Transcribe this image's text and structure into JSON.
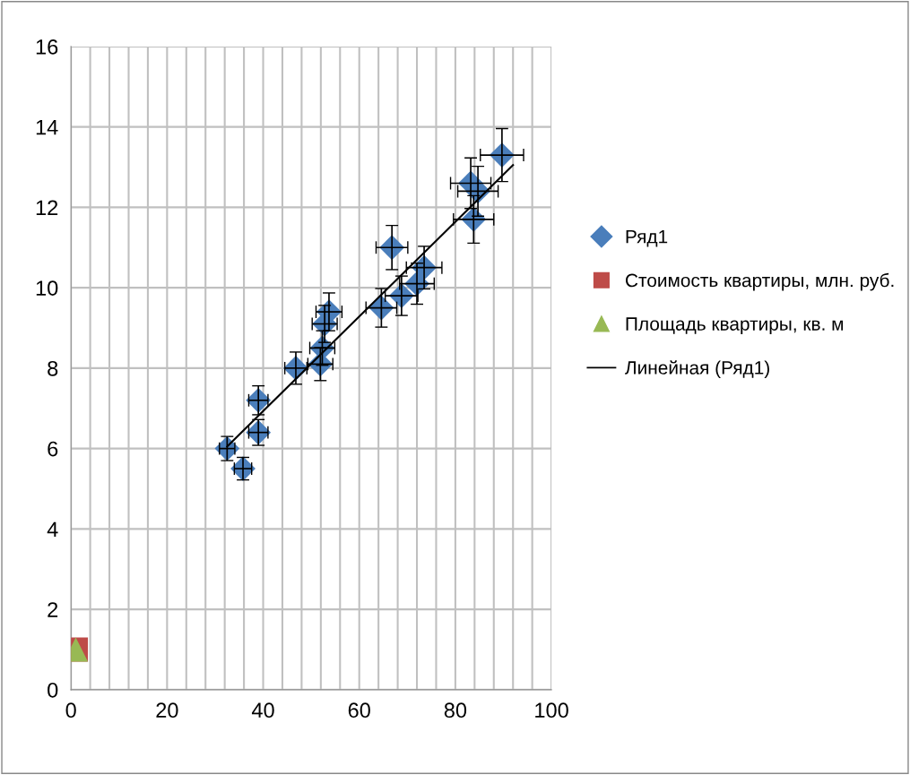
{
  "chart_data": {
    "type": "scatter",
    "xlim": [
      0,
      100
    ],
    "ylim": [
      0,
      16
    ],
    "xticks": [
      0,
      {
        "value": 4,
        "label": null
      },
      {
        "value": 8,
        "label": null
      },
      {
        "value": 12,
        "label": null
      },
      {
        "value": 16,
        "label": null
      },
      20,
      {
        "value": 24,
        "label": null
      },
      {
        "value": 28,
        "label": null
      },
      {
        "value": 32,
        "label": null
      },
      {
        "value": 36,
        "label": null
      },
      40,
      {
        "value": 44,
        "label": null
      },
      {
        "value": 48,
        "label": null
      },
      {
        "value": 52,
        "label": null
      },
      {
        "value": 56,
        "label": null
      },
      60,
      {
        "value": 64,
        "label": null
      },
      {
        "value": 68,
        "label": null
      },
      {
        "value": 72,
        "label": null
      },
      {
        "value": 76,
        "label": null
      },
      80,
      {
        "value": 84,
        "label": null
      },
      {
        "value": 88,
        "label": null
      },
      {
        "value": 92,
        "label": null
      },
      {
        "value": 96,
        "label": null
      },
      100
    ],
    "yticks": [
      0,
      2,
      4,
      6,
      8,
      10,
      12,
      14,
      16
    ],
    "grid": true,
    "legend": "right",
    "series": [
      {
        "name": "Ряд1",
        "color": "#4a7ebb",
        "marker": "diamond",
        "x": [
          32.5,
          35.8,
          39,
          39,
          46.8,
          51.9,
          52.3,
          52.8,
          53.7,
          64.6,
          68.8,
          72,
          73.5,
          66.8,
          83.2,
          84.7,
          83.8,
          89.7
        ],
        "values": [
          6.0,
          5.5,
          7.2,
          6.4,
          8.0,
          8.1,
          8.5,
          9.1,
          9.4,
          9.5,
          9.8,
          10.1,
          10.5,
          11.0,
          12.6,
          12.4,
          11.7,
          13.3
        ],
        "errors": [
          0.3,
          0.28,
          0.36,
          0.32,
          0.4,
          0.41,
          0.43,
          0.46,
          0.47,
          0.48,
          0.49,
          0.51,
          0.53,
          0.55,
          0.63,
          0.62,
          0.59,
          0.66
        ],
        "xerrors": [
          1.6,
          1.8,
          2,
          2,
          2.3,
          2.6,
          2.6,
          2.6,
          2.7,
          3.2,
          3.4,
          3.6,
          3.7,
          3.3,
          4.2,
          4.2,
          4.2,
          4.5
        ]
      },
      {
        "name": "Стоимость квартиры, млн. руб.",
        "color": "#be4b48",
        "marker": "square",
        "x": [
          1
        ],
        "values": [
          1
        ]
      },
      {
        "name": "Площадь квартиры, кв. м",
        "color": "#98b954",
        "marker": "triangle",
        "x": [
          1
        ],
        "values": [
          1
        ]
      },
      {
        "name": "Линейная (Ряд1)",
        "type": "line",
        "color": "#000000",
        "marker": "none",
        "x": [
          32.5,
          92
        ],
        "values": [
          6.05,
          13.05
        ]
      }
    ]
  }
}
